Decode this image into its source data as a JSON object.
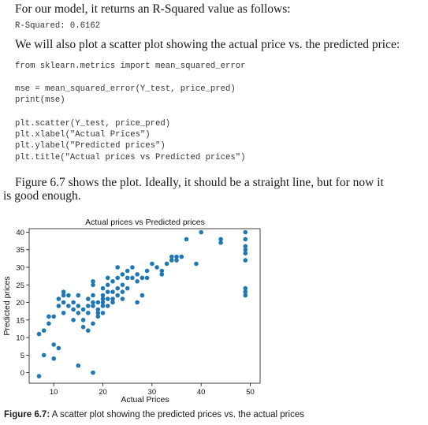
{
  "text": {
    "p1": "For our model, it returns an R-Squared value as follows:",
    "code1": "R-Squared: 0.6162",
    "p2": "We will also plot a scatter plot showing the actual price vs. the predicted price:",
    "code2": [
      "from sklearn.metrics import mean_squared_error"
    ],
    "code3": [
      "mse = mean_squared_error(Y_test, price_pred)",
      "print(mse)"
    ],
    "code4": [
      "plt.scatter(Y_test, price_pred)",
      "plt.xlabel(\"Actual Prices\")",
      "plt.ylabel(\"Predicted prices\")",
      "plt.title(\"Actual prices vs Predicted prices\")"
    ],
    "p3_line1": "Figure 6.7 shows the plot. Ideally, it should be a straight line, but for now it",
    "p3_line2": "is good enough.",
    "caption_label": "Figure 6.7:",
    "caption_text": " A scatter plot showing the predicted prices vs. the actual prices"
  },
  "chart_data": {
    "type": "scatter",
    "title": "Actual prices vs Predicted prices",
    "xlabel": "Actual Prices",
    "ylabel": "Predicted prices",
    "xlim": [
      5,
      52
    ],
    "ylim": [
      -3,
      41
    ],
    "xticks": [
      10,
      20,
      30,
      40,
      50
    ],
    "yticks": [
      0,
      5,
      10,
      15,
      20,
      25,
      30,
      35,
      40
    ],
    "grid": false,
    "color": "#1f77b4",
    "points": [
      [
        7,
        -1
      ],
      [
        8,
        5
      ],
      [
        7,
        11
      ],
      [
        8,
        12
      ],
      [
        9,
        16
      ],
      [
        9,
        14
      ],
      [
        10,
        16
      ],
      [
        10,
        8
      ],
      [
        11,
        7
      ],
      [
        10,
        4
      ],
      [
        12,
        17
      ],
      [
        12,
        20
      ],
      [
        11,
        19
      ],
      [
        11,
        21
      ],
      [
        12,
        22
      ],
      [
        13,
        19
      ],
      [
        13,
        22
      ],
      [
        14,
        20
      ],
      [
        14,
        18
      ],
      [
        14,
        15
      ],
      [
        15,
        17
      ],
      [
        15,
        19
      ],
      [
        15,
        22
      ],
      [
        16,
        18
      ],
      [
        16,
        15
      ],
      [
        16,
        13
      ],
      [
        17,
        17
      ],
      [
        17,
        21
      ],
      [
        17,
        19
      ],
      [
        17,
        12
      ],
      [
        18,
        19
      ],
      [
        18,
        22
      ],
      [
        18,
        25
      ],
      [
        18,
        20
      ],
      [
        18,
        26
      ],
      [
        19,
        20
      ],
      [
        19,
        18
      ],
      [
        19,
        17
      ],
      [
        20,
        19
      ],
      [
        20,
        22
      ],
      [
        20,
        21
      ],
      [
        20,
        24
      ],
      [
        20,
        20
      ],
      [
        20,
        17
      ],
      [
        21,
        19
      ],
      [
        21,
        21
      ],
      [
        21,
        23
      ],
      [
        21,
        25
      ],
      [
        21,
        27
      ],
      [
        22,
        23
      ],
      [
        22,
        20
      ],
      [
        22,
        21
      ],
      [
        22,
        26
      ],
      [
        23,
        22
      ],
      [
        23,
        24
      ],
      [
        23,
        27
      ],
      [
        23,
        30
      ],
      [
        24,
        23
      ],
      [
        24,
        25
      ],
      [
        24,
        28
      ],
      [
        24,
        21
      ],
      [
        25,
        24
      ],
      [
        25,
        29
      ],
      [
        25,
        27
      ],
      [
        26,
        27
      ],
      [
        26,
        30
      ],
      [
        27,
        26
      ],
      [
        27,
        28
      ],
      [
        28,
        27
      ],
      [
        29,
        29
      ],
      [
        29,
        27
      ],
      [
        30,
        31
      ],
      [
        31,
        30
      ],
      [
        32,
        28
      ],
      [
        32,
        29
      ],
      [
        33,
        31
      ],
      [
        34,
        32
      ],
      [
        34,
        33
      ],
      [
        35,
        33
      ],
      [
        35,
        32
      ],
      [
        36,
        33
      ],
      [
        37,
        38
      ],
      [
        39,
        31
      ],
      [
        40,
        40
      ],
      [
        44,
        37
      ],
      [
        44,
        38
      ],
      [
        49,
        40
      ],
      [
        49,
        38
      ],
      [
        49,
        36
      ],
      [
        49,
        35
      ],
      [
        49,
        34
      ],
      [
        49,
        32
      ],
      [
        49,
        24
      ],
      [
        49,
        23
      ],
      [
        49,
        22
      ],
      [
        15,
        2
      ],
      [
        18,
        0
      ],
      [
        12,
        23
      ],
      [
        28,
        22
      ],
      [
        27,
        20
      ],
      [
        19,
        16
      ],
      [
        18,
        14
      ]
    ]
  }
}
